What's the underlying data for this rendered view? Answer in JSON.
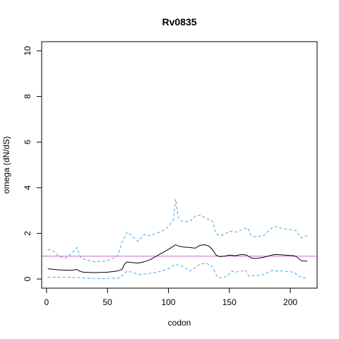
{
  "chart_data": {
    "type": "line",
    "title": "Rv0835",
    "xlabel": "codon",
    "ylabel": "omega (dN/dS)",
    "xlim": [
      -4,
      222
    ],
    "ylim": [
      -0.4,
      10.4
    ],
    "x_ticks": [
      0,
      50,
      100,
      150,
      200
    ],
    "y_ticks": [
      0,
      2,
      4,
      6,
      8,
      10
    ],
    "grid": false,
    "reference_line": {
      "y": 1,
      "color": "#cc66cc"
    },
    "series": [
      {
        "role": "estimate",
        "color": "#000000",
        "style": "solid",
        "x": [
          1,
          10,
          20,
          25,
          27,
          30,
          40,
          50,
          58,
          62,
          64,
          66,
          70,
          75,
          80,
          85,
          90,
          95,
          100,
          103,
          106,
          108,
          112,
          118,
          122,
          126,
          130,
          133,
          136,
          139,
          142,
          146,
          150,
          155,
          160,
          164,
          168,
          172,
          178,
          185,
          188,
          195,
          203,
          205,
          209,
          214
        ],
        "y": [
          0.45,
          0.4,
          0.38,
          0.42,
          0.35,
          0.3,
          0.28,
          0.3,
          0.35,
          0.42,
          0.65,
          0.75,
          0.72,
          0.7,
          0.75,
          0.85,
          1.0,
          1.15,
          1.3,
          1.4,
          1.5,
          1.45,
          1.4,
          1.38,
          1.35,
          1.48,
          1.5,
          1.45,
          1.3,
          1.05,
          0.98,
          1.0,
          1.05,
          1.02,
          1.08,
          1.05,
          0.92,
          0.9,
          0.95,
          1.05,
          1.08,
          1.05,
          1.02,
          0.98,
          0.8,
          0.78
        ]
      },
      {
        "role": "upper bound",
        "color": "#4da6e0",
        "style": "dashed",
        "x": [
          1,
          5,
          10,
          15,
          20,
          25,
          28,
          32,
          40,
          50,
          58,
          62,
          66,
          70,
          75,
          80,
          85,
          90,
          95,
          100,
          104,
          106,
          108,
          112,
          118,
          122,
          126,
          131,
          136,
          139,
          142,
          146,
          150,
          155,
          160,
          165,
          168,
          172,
          178,
          185,
          188,
          195,
          203,
          205,
          209,
          214
        ],
        "y": [
          1.3,
          1.25,
          1.0,
          0.9,
          1.1,
          1.38,
          0.95,
          0.85,
          0.75,
          0.8,
          1.0,
          1.6,
          2.05,
          1.9,
          1.65,
          1.95,
          1.9,
          2.0,
          2.1,
          2.3,
          2.6,
          3.5,
          2.7,
          2.5,
          2.55,
          2.75,
          2.8,
          2.65,
          2.55,
          2.0,
          1.9,
          1.95,
          2.1,
          2.05,
          2.15,
          2.25,
          1.9,
          1.85,
          1.9,
          2.25,
          2.3,
          2.2,
          2.15,
          2.1,
          1.8,
          1.9
        ]
      },
      {
        "role": "lower bound",
        "color": "#4da6e0",
        "style": "dashed",
        "x": [
          1,
          10,
          20,
          25,
          28,
          35,
          45,
          55,
          60,
          64,
          66,
          70,
          75,
          80,
          85,
          90,
          95,
          100,
          103,
          106,
          108,
          112,
          118,
          122,
          126,
          131,
          136,
          140,
          143,
          148,
          152,
          155,
          160,
          163,
          166,
          172,
          178,
          185,
          188,
          195,
          203,
          206,
          210,
          214
        ],
        "y": [
          0.08,
          0.08,
          0.07,
          0.06,
          0.05,
          0.03,
          0.02,
          0.03,
          0.05,
          0.25,
          0.35,
          0.3,
          0.2,
          0.22,
          0.25,
          0.3,
          0.35,
          0.45,
          0.55,
          0.65,
          0.6,
          0.55,
          0.35,
          0.5,
          0.65,
          0.7,
          0.55,
          0.1,
          0.05,
          0.12,
          0.35,
          0.3,
          0.35,
          0.4,
          0.12,
          0.15,
          0.2,
          0.38,
          0.35,
          0.35,
          0.3,
          0.15,
          0.05,
          0.05
        ]
      }
    ]
  }
}
